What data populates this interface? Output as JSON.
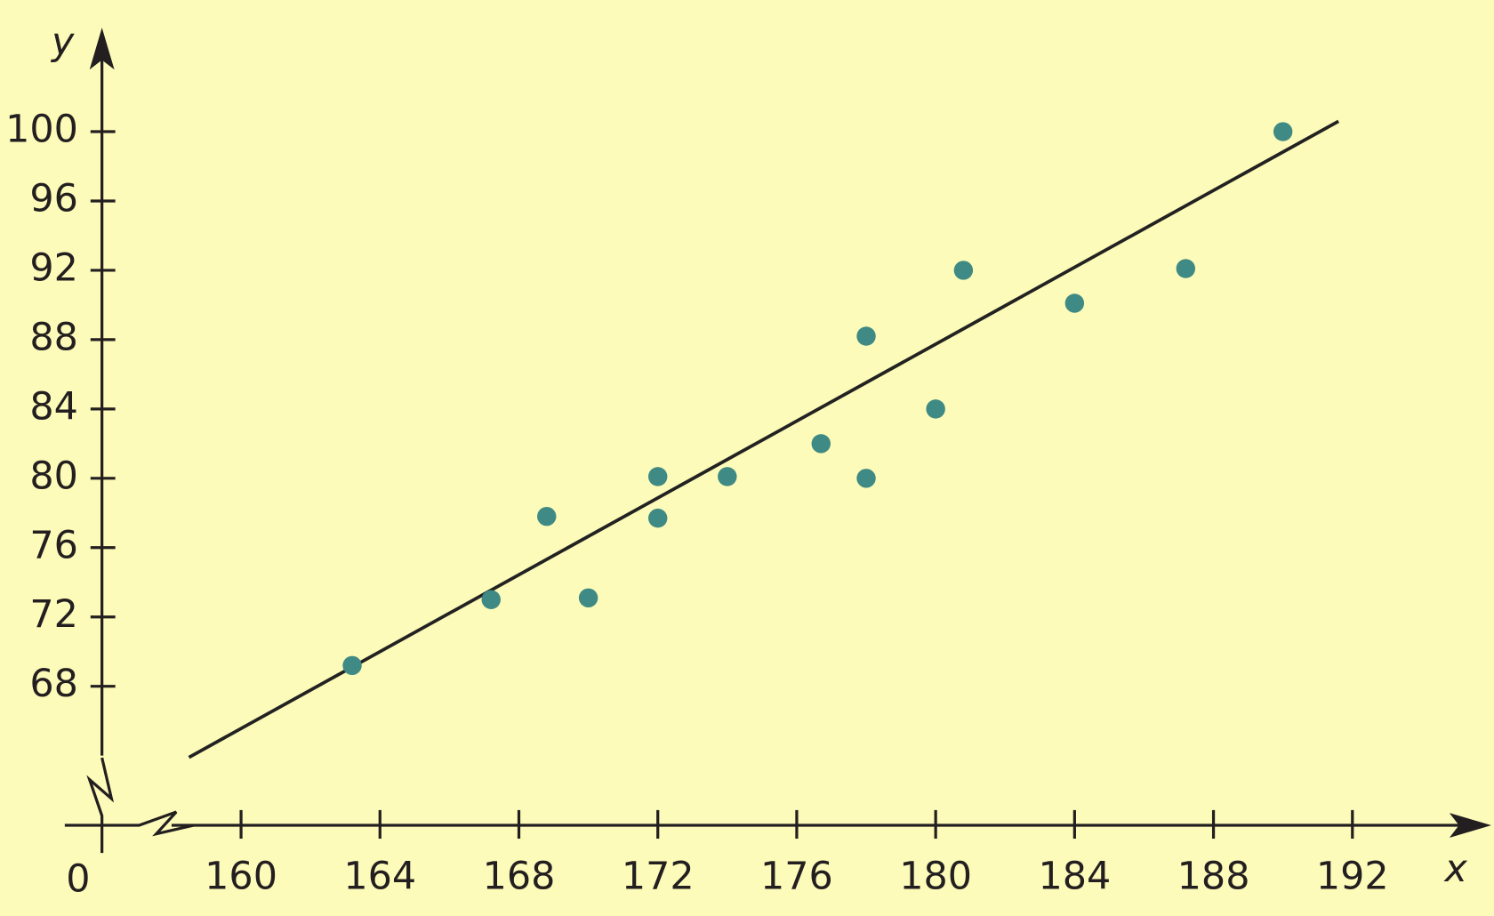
{
  "chart_data": {
    "type": "scatter",
    "x_label": "x",
    "y_label": "y",
    "origin_label": "0",
    "x": [
      163.2,
      167.2,
      168.8,
      170.0,
      172.0,
      172.0,
      174.0,
      176.7,
      178.0,
      178.0,
      180.0,
      180.8,
      184.0,
      187.2,
      190.0
    ],
    "values": [
      69.2,
      73.0,
      77.8,
      73.1,
      80.1,
      77.7,
      80.1,
      82.0,
      88.2,
      80.0,
      84.0,
      92.0,
      90.1,
      92.1,
      100.0
    ],
    "color": "#3f8a84",
    "trend_line": {
      "x": [
        158.5,
        191.6
      ],
      "y": [
        63.9,
        100.6
      ],
      "color": "#222222"
    },
    "xlim": [
      158,
      196
    ],
    "ylim": [
      64,
      106
    ],
    "xticks": [
      160,
      164,
      168,
      172,
      176,
      180,
      184,
      188,
      192
    ],
    "yticks": [
      68,
      72,
      76,
      80,
      84,
      88,
      92,
      96,
      100
    ],
    "grid": false
  }
}
